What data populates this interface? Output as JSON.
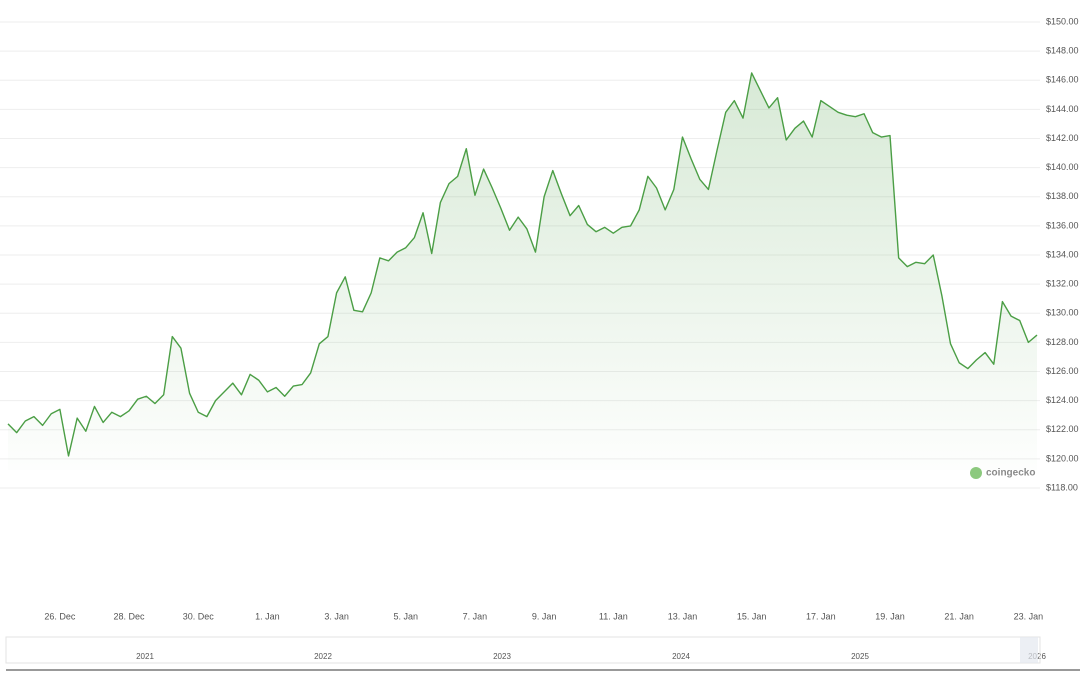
{
  "chart_data": {
    "type": "line",
    "color": "#4b9e45",
    "grid": true,
    "categories": [
      null,
      null,
      null,
      null,
      null,
      null,
      "26. Dec",
      null,
      null,
      null,
      null,
      null,
      null,
      null,
      "28. Dec",
      null,
      null,
      null,
      null,
      null,
      null,
      null,
      "30. Dec",
      null,
      null,
      null,
      null,
      null,
      null,
      null,
      "1. Jan",
      null,
      null,
      null,
      null,
      null,
      null,
      null,
      "3. Jan",
      null,
      null,
      null,
      null,
      null,
      null,
      null,
      "5. Jan",
      null,
      null,
      null,
      null,
      null,
      null,
      null,
      "7. Jan",
      null,
      null,
      null,
      null,
      null,
      null,
      null,
      "9. Jan",
      null,
      null,
      null,
      null,
      null,
      null,
      null,
      "11. Jan",
      null,
      null,
      null,
      null,
      null,
      null,
      null,
      "13. Jan",
      null,
      null,
      null,
      null,
      null,
      null,
      null,
      "15. Jan",
      null,
      null,
      null,
      null,
      null,
      null,
      null,
      "17. Jan",
      null,
      null,
      null,
      null,
      null,
      null,
      null,
      "19. Jan",
      null,
      null,
      null,
      null,
      null,
      null,
      null,
      "21. Jan",
      null,
      null,
      null,
      null,
      null,
      null,
      null,
      "23. Jan",
      null
    ],
    "values": [
      122.4,
      121.8,
      122.6,
      122.9,
      122.3,
      123.1,
      123.4,
      120.2,
      122.8,
      121.9,
      123.6,
      122.5,
      123.2,
      122.9,
      123.3,
      124.1,
      124.3,
      123.8,
      124.4,
      128.4,
      127.6,
      124.5,
      123.2,
      122.9,
      124.0,
      124.6,
      125.2,
      124.4,
      125.8,
      125.4,
      124.6,
      124.9,
      124.3,
      125.0,
      125.1,
      125.9,
      127.9,
      128.4,
      131.4,
      132.5,
      130.2,
      130.1,
      131.4,
      133.8,
      133.6,
      134.2,
      134.5,
      135.2,
      136.9,
      134.1,
      137.6,
      138.9,
      139.4,
      141.3,
      138.1,
      139.9,
      138.6,
      137.2,
      135.7,
      136.6,
      135.8,
      134.2,
      138.0,
      139.8,
      138.2,
      136.7,
      137.4,
      136.1,
      135.6,
      135.9,
      135.5,
      135.9,
      136.0,
      137.1,
      139.4,
      138.6,
      137.1,
      138.5,
      142.1,
      140.6,
      139.2,
      138.5,
      141.2,
      143.8,
      144.6,
      143.4,
      146.5,
      145.3,
      144.1,
      144.8,
      141.9,
      142.7,
      143.2,
      142.1,
      144.6,
      144.2,
      143.8,
      143.6,
      143.5,
      143.7,
      142.4,
      142.1,
      142.2,
      133.8,
      133.2,
      133.5,
      133.4,
      134.0,
      131.2,
      127.9,
      126.6,
      126.2,
      126.8,
      127.3,
      126.5,
      130.8,
      129.8,
      129.5,
      128.0,
      128.5
    ],
    "ylim": [
      118,
      150
    ],
    "yticks": [
      {
        "value": 118,
        "label": "$118.00"
      },
      {
        "value": 120,
        "label": "$120.00"
      },
      {
        "value": 122,
        "label": "$122.00"
      },
      {
        "value": 124,
        "label": "$124.00"
      },
      {
        "value": 126,
        "label": "$126.00"
      },
      {
        "value": 128,
        "label": "$128.00"
      },
      {
        "value": 130,
        "label": "$130.00"
      },
      {
        "value": 132,
        "label": "$132.00"
      },
      {
        "value": 134,
        "label": "$134.00"
      },
      {
        "value": 136,
        "label": "$136.00"
      },
      {
        "value": 138,
        "label": "$138.00"
      },
      {
        "value": 140,
        "label": "$140.00"
      },
      {
        "value": 142,
        "label": "$142.00"
      },
      {
        "value": 144,
        "label": "$144.00"
      },
      {
        "value": 146,
        "label": "$146.00"
      },
      {
        "value": 148,
        "label": "$148.00"
      },
      {
        "value": 150,
        "label": "$150.00"
      }
    ],
    "watermark": "coingecko",
    "navigator_years": [
      "2021",
      "2022",
      "2023",
      "2024",
      "2025",
      "2026"
    ]
  }
}
